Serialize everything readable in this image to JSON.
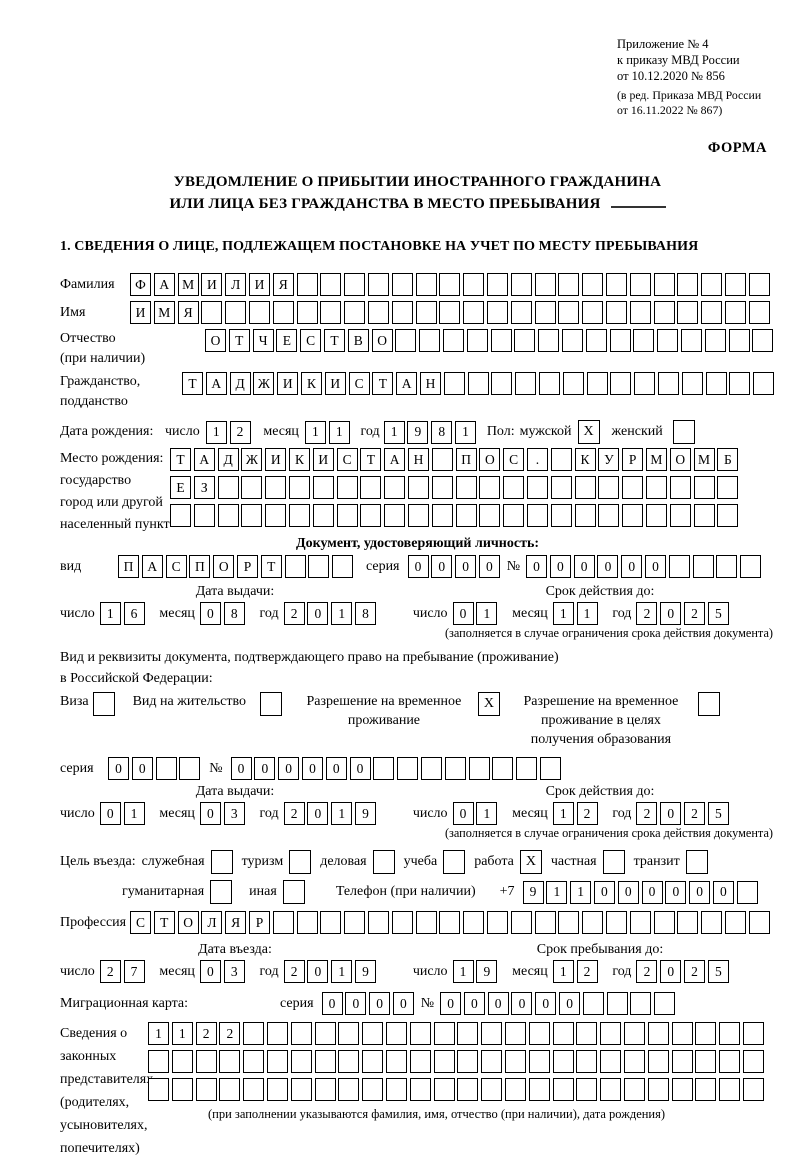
{
  "date_labels": {
    "day": "число",
    "month": "месяц",
    "year": "год"
  },
  "header": {
    "appendix_lines": [
      "Приложение № 4",
      "к приказу МВД России",
      "от 10.12.2020 № 856"
    ],
    "appendix_note_lines": [
      "(в ред. Приказа МВД России",
      "от 16.11.2022 № 867)"
    ],
    "form_label": "ФОРМА",
    "title_line1": "УВЕДОМЛЕНИЕ О ПРИБЫТИИ ИНОСТРАННОГО ГРАЖДАНИНА",
    "title_line2": "ИЛИ ЛИЦА БЕЗ ГРАЖДАНСТВА В МЕСТО ПРЕБЫВАНИЯ"
  },
  "section1": {
    "heading": "1. СВЕДЕНИЯ О ЛИЦЕ, ПОДЛЕЖАЩЕМ ПОСТАНОВКЕ НА УЧЕТ ПО МЕСТУ ПРЕБЫВАНИЯ"
  },
  "person": {
    "surname": {
      "label": "Фамилия",
      "value": "ФАМИЛИЯ",
      "cells": 27
    },
    "given_name": {
      "label": "Имя",
      "value": "ИМЯ",
      "cells": 27
    },
    "patronymic": {
      "label_lines": [
        "Отчество",
        "(при наличии)"
      ],
      "value": "ОТЧЕСТВО",
      "cells": 24
    },
    "citizenship": {
      "label_lines": [
        "Гражданство,",
        "подданство"
      ],
      "value": "ТАДЖИКИСТАН",
      "cells": 25
    },
    "birth_date": {
      "label": "Дата рождения:",
      "day": "12",
      "month": "11",
      "year": "1981"
    },
    "sex": {
      "label": "Пол:",
      "male_label": "мужской",
      "male_checked": true,
      "female_label": "женский",
      "female_checked": false
    },
    "birth_place": {
      "label_lines": [
        "Место рождения:",
        "государство",
        "город или другой",
        "населенный пункт"
      ],
      "rows": [
        {
          "value": "ТАДЖИКИСТАН ПОС. КУРМОМБ",
          "cells": 24
        },
        {
          "value": "ЕЗ",
          "cells": 24
        },
        {
          "value": "",
          "cells": 24
        }
      ]
    }
  },
  "identity_doc": {
    "heading": "Документ, удостоверяющий личность:",
    "kind": {
      "label": "вид",
      "value": "ПАСПОРТ",
      "cells": 10
    },
    "series": {
      "label": "серия",
      "value": "0000",
      "cells": 4
    },
    "number": {
      "label": "№",
      "value": "000000",
      "cells": 10
    },
    "issue_heading": "Дата выдачи:",
    "valid_heading": "Срок действия до:",
    "issue": {
      "day": "16",
      "month": "08",
      "year": "2018"
    },
    "valid": {
      "day": "01",
      "month": "11",
      "year": "2025"
    },
    "note": "(заполняется в случае ограничения срока действия документа)"
  },
  "residence_doc": {
    "intro_line1": "Вид и реквизиты документа, подтверждающего право на пребывание (проживание)",
    "intro_line2": "в Российской Федерации:",
    "options": [
      {
        "label_lines": [
          "Виза"
        ],
        "checked": false
      },
      {
        "label_lines": [
          "Вид на жительство"
        ],
        "checked": false
      },
      {
        "label_lines": [
          "Разрешение на временное",
          "проживание"
        ],
        "checked": true
      },
      {
        "label_lines": [
          "Разрешение на временное",
          "проживание в целях",
          "получения образования"
        ],
        "checked": false
      }
    ],
    "series": {
      "label": "серия",
      "value": "00",
      "cells": 4
    },
    "number": {
      "label": "№",
      "value": "000000",
      "cells": 14
    },
    "issue_heading": "Дата выдачи:",
    "valid_heading": "Срок действия до:",
    "issue": {
      "day": "01",
      "month": "03",
      "year": "2019"
    },
    "valid": {
      "day": "01",
      "month": "12",
      "year": "2025"
    },
    "note": "(заполняется в случае ограничения срока действия документа)"
  },
  "visit": {
    "purpose_label": "Цель въезда:",
    "options_row1": [
      {
        "label": "служебная",
        "checked": false
      },
      {
        "label": "туризм",
        "checked": false
      },
      {
        "label": "деловая",
        "checked": false
      },
      {
        "label": "учеба",
        "checked": false
      },
      {
        "label": "работа",
        "checked": true
      },
      {
        "label": "частная",
        "checked": false
      },
      {
        "label": "транзит",
        "checked": false
      }
    ],
    "options_row2": [
      {
        "label": "гуманитарная",
        "checked": false
      },
      {
        "label": "иная",
        "checked": false
      }
    ],
    "phone": {
      "label": "Телефон (при наличии)",
      "prefix": "+7",
      "value": "911000000",
      "cells": 10
    },
    "profession": {
      "label": "Профессия",
      "value": "СТОЛЯР",
      "cells": 27
    }
  },
  "stay": {
    "entry_heading": "Дата въезда:",
    "until_heading": "Срок пребывания до:",
    "entry": {
      "day": "27",
      "month": "03",
      "year": "2019"
    },
    "until": {
      "day": "19",
      "month": "12",
      "year": "2025"
    }
  },
  "migration_card": {
    "label": "Миграционная карта:",
    "series": {
      "label": "серия",
      "value": "0000",
      "cells": 4
    },
    "number": {
      "label": "№",
      "value": "000000",
      "cells": 10
    }
  },
  "representatives": {
    "label_lines": [
      "Сведения о",
      "законных",
      "представителях",
      "(родителях,",
      "усыновителях,",
      "попечителях)"
    ],
    "rows": [
      {
        "value": "1122",
        "cells": 26
      },
      {
        "value": "",
        "cells": 26
      },
      {
        "value": "",
        "cells": 26
      }
    ],
    "note": "(при заполнении указываются фамилия, имя, отчество (при наличии), дата рождения)"
  }
}
